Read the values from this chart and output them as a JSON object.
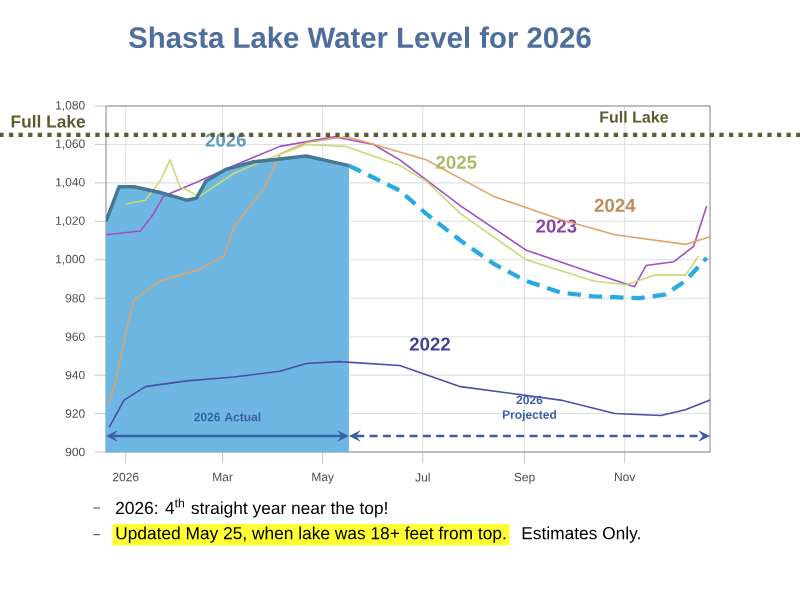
{
  "chart_data": {
    "type": "line",
    "title": "Shasta Lake Water Level for 2026",
    "xlim": [
      "2025-12-20",
      "2026-12-23"
    ],
    "ylim": [
      900,
      1080
    ],
    "xticks": [
      {
        "value": "2026-01-01",
        "label": "2026"
      },
      {
        "value": "2026-03-01",
        "label": "Mar"
      },
      {
        "value": "2026-05-01",
        "label": "May"
      },
      {
        "value": "2026-07-01",
        "label": "Jul"
      },
      {
        "value": "2026-09-01",
        "label": "Sep"
      },
      {
        "value": "2026-11-01",
        "label": "Nov"
      }
    ],
    "yticks": [
      900,
      920,
      940,
      960,
      980,
      {
        "value": 1000,
        "label": "1,000"
      },
      {
        "value": 1020,
        "label": "1,020"
      },
      {
        "value": 1040,
        "label": "1,040"
      },
      {
        "value": 1060,
        "label": "1,060"
      },
      {
        "value": 1080,
        "label": "1,080"
      }
    ],
    "grid": true,
    "ref_lines": [
      {
        "axis": "y",
        "value": 1065,
        "label": "Full Lake",
        "color": "#5b5b2e",
        "line_style": "dotted"
      }
    ],
    "series": [
      {
        "name": "2022",
        "color": "#4a4fa8",
        "x": [
          "2025-12-22",
          "2025-12-31",
          "2026-01-13",
          "2026-02-07",
          "2026-03-08",
          "2026-04-05",
          "2026-04-21",
          "2026-05-11",
          "2026-06-17",
          "2026-07-24",
          "2026-09-23",
          "2026-10-26",
          "2026-11-23",
          "2026-12-08",
          "2026-12-23"
        ],
        "values": [
          913,
          927,
          934,
          937,
          939,
          942,
          946,
          947,
          945,
          934,
          927,
          920,
          919,
          922,
          927
        ]
      },
      {
        "name": "2023",
        "color": "#a24fc4",
        "x": [
          "2025-12-20",
          "2026-01-10",
          "2026-01-18",
          "2026-01-24",
          "2026-02-15",
          "2026-03-08",
          "2026-04-05",
          "2026-05-08",
          "2026-06-01",
          "2026-06-17",
          "2026-07-24",
          "2026-09-02",
          "2026-10-13",
          "2026-11-07",
          "2026-11-14",
          "2026-12-01",
          "2026-12-13",
          "2026-12-21"
        ],
        "values": [
          1013,
          1015,
          1024,
          1033,
          1041,
          1049,
          1059,
          1064,
          1060,
          1052,
          1028,
          1005,
          993,
          986,
          997,
          999,
          1007,
          1028
        ]
      },
      {
        "name": "2024",
        "color": "#e0a46a",
        "x": [
          "2025-12-22",
          "2025-12-25",
          "2026-01-03",
          "2026-01-06",
          "2026-01-22",
          "2026-02-15",
          "2026-03-02",
          "2026-03-08",
          "2026-03-27",
          "2026-04-05",
          "2026-04-21",
          "2026-05-15",
          "2026-05-24",
          "2026-07-03",
          "2026-08-13",
          "2026-09-23",
          "2026-10-26",
          "2026-12-08",
          "2026-12-23"
        ],
        "values": [
          926,
          934,
          969,
          979,
          989,
          995,
          1002,
          1017,
          1038,
          1055,
          1061,
          1064,
          1062,
          1052,
          1033,
          1021,
          1013,
          1008,
          1012
        ]
      },
      {
        "name": "2025",
        "color": "#c9d97a",
        "x": [
          "2026-01-01",
          "2026-01-13",
          "2026-01-22",
          "2026-01-28",
          "2026-02-03",
          "2026-02-15",
          "2026-03-08",
          "2026-03-27",
          "2026-04-21",
          "2026-05-15",
          "2026-06-17",
          "2026-07-03",
          "2026-07-24",
          "2026-09-02",
          "2026-10-13",
          "2026-11-02",
          "2026-11-19",
          "2026-12-08",
          "2026-12-16"
        ],
        "values": [
          1029,
          1031,
          1041,
          1052,
          1038,
          1033,
          1045,
          1052,
          1060,
          1059,
          1049,
          1041,
          1024,
          1000,
          989,
          987,
          992,
          992,
          1002
        ]
      },
      {
        "name": "2026",
        "type": "area",
        "color": "#6db7e2",
        "x": [
          "2025-12-20",
          "2025-12-28",
          "2026-01-06",
          "2026-01-22",
          "2026-02-07",
          "2026-02-13",
          "2026-02-19",
          "2026-03-03",
          "2026-03-20",
          "2026-04-01",
          "2026-04-21",
          "2026-05-17"
        ],
        "values": [
          1020,
          1038,
          1038,
          1035,
          1031,
          1032,
          1041,
          1047,
          1051,
          1052,
          1054,
          1049
        ]
      },
      {
        "type": "line",
        "line_style": "dashed",
        "color": "#2aaae2",
        "x": [
          "2026-05-17",
          "2026-06-17",
          "2026-07-03",
          "2026-07-24",
          "2026-08-13",
          "2026-09-02",
          "2026-09-23",
          "2026-10-13",
          "2026-11-10",
          "2026-11-26",
          "2026-12-08",
          "2026-12-21"
        ],
        "values": [
          1049,
          1036,
          1024,
          1010,
          998,
          989,
          983,
          981,
          980,
          982,
          989,
          1001
        ]
      }
    ],
    "annotations": [
      "2026 Actual",
      "2026 Projected",
      "2026: 4$^{th}$ straight year near the top!",
      "Updated May 25, when lake was 18+ feet from top.",
      "Estimates Only."
    ]
  }
}
